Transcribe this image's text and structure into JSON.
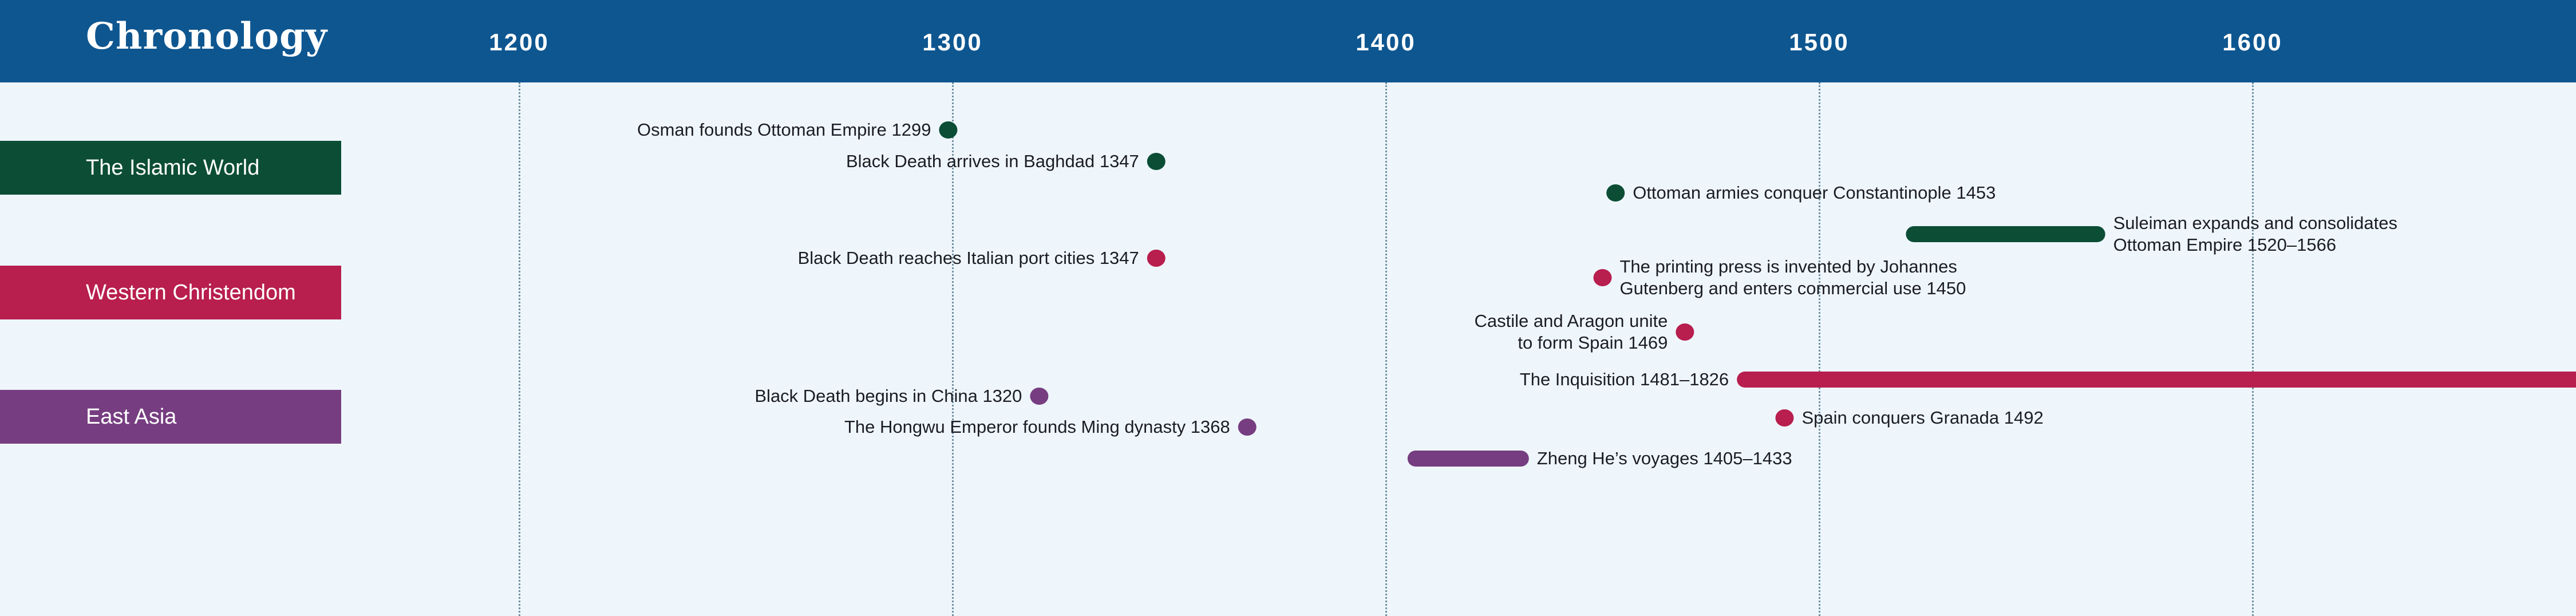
{
  "title": "Chronology",
  "axis": {
    "ticks": [
      1200,
      1300,
      1400,
      1500,
      1600
    ]
  },
  "colors": {
    "header": "#0e5690",
    "background": "#eef6fc",
    "islamic": "#0b4d35",
    "western": "#b81e4e",
    "east_asia": "#763d80"
  },
  "lanes": [
    {
      "key": "islamic",
      "label": "The Islamic World"
    },
    {
      "key": "western",
      "label": "Western Christendom"
    },
    {
      "key": "east_asia",
      "label": "East Asia"
    }
  ],
  "events": [
    {
      "lane": "islamic",
      "type": "point",
      "year": 1299,
      "label_lines": [
        "Osman founds Ottoman Empire 1299"
      ],
      "side": "left"
    },
    {
      "lane": "islamic",
      "type": "point",
      "year": 1347,
      "label_lines": [
        "Black Death arrives in Baghdad 1347"
      ],
      "side": "left"
    },
    {
      "lane": "islamic",
      "type": "point",
      "year": 1453,
      "label_lines": [
        "Ottoman armies conquer Constantinople 1453"
      ],
      "side": "right"
    },
    {
      "lane": "islamic",
      "type": "span",
      "start": 1520,
      "end": 1566,
      "label_lines": [
        "Suleiman expands and consolidates",
        "Ottoman Empire 1520–1566"
      ],
      "side": "right"
    },
    {
      "lane": "western",
      "type": "point",
      "year": 1347,
      "label_lines": [
        "Black Death reaches Italian port cities 1347"
      ],
      "side": "left"
    },
    {
      "lane": "western",
      "type": "point",
      "year": 1450,
      "label_lines": [
        "The printing press is invented by Johannes",
        "Gutenberg and enters commercial use 1450"
      ],
      "side": "right"
    },
    {
      "lane": "western",
      "type": "point",
      "year": 1469,
      "label_lines": [
        "Castile and Aragon unite",
        "to form Spain 1469"
      ],
      "side": "left"
    },
    {
      "lane": "western",
      "type": "span",
      "start": 1481,
      "end": 1826,
      "label_lines": [
        "The Inquisition 1481–1826"
      ],
      "side": "left"
    },
    {
      "lane": "western",
      "type": "point",
      "year": 1492,
      "label_lines": [
        "Spain conquers Granada 1492"
      ],
      "side": "right"
    },
    {
      "lane": "east_asia",
      "type": "point",
      "year": 1320,
      "label_lines": [
        "Black Death begins in China 1320"
      ],
      "side": "left"
    },
    {
      "lane": "east_asia",
      "type": "point",
      "year": 1368,
      "label_lines": [
        "The Hongwu Emperor founds Ming dynasty 1368"
      ],
      "side": "left"
    },
    {
      "lane": "east_asia",
      "type": "span",
      "start": 1405,
      "end": 1433,
      "label_lines": [
        "Zheng He’s voyages 1405–1433"
      ],
      "side": "right"
    }
  ]
}
